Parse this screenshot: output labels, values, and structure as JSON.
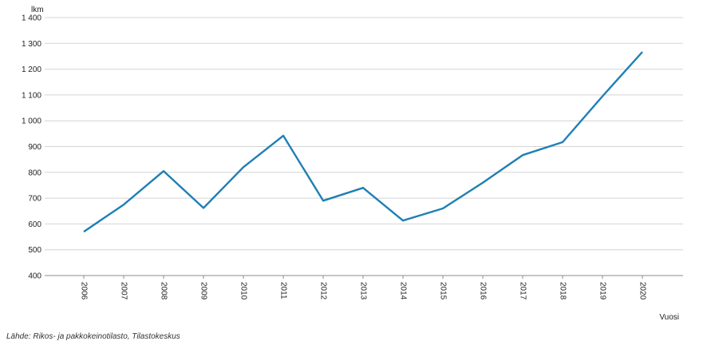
{
  "chart_data": {
    "type": "line",
    "title": "",
    "ylabel": "lkm",
    "xlabel": "Vuosi",
    "ylim": [
      400,
      1400
    ],
    "y_ticks": [
      400,
      500,
      600,
      700,
      800,
      900,
      1000,
      1100,
      1200,
      1300,
      1400
    ],
    "y_tick_labels": [
      "400",
      "500",
      "600",
      "700",
      "800",
      "900",
      "1 000",
      "1 100",
      "1 200",
      "1 300",
      "1 400"
    ],
    "grid": true,
    "line_color": "#1f7fb4",
    "categories": [
      "2006",
      "2007",
      "2008",
      "2009",
      "2010",
      "2011",
      "2012",
      "2013",
      "2014",
      "2015",
      "2016",
      "2017",
      "2018",
      "2019",
      "2020"
    ],
    "series": [
      {
        "values": [
          570,
          675,
          805,
          662,
          820,
          942,
          690,
          740,
          613,
          660,
          760,
          867,
          917,
          1095,
          1267
        ]
      }
    ]
  },
  "source": "Lähde: Rikos- ja pakkokeinotilasto, Tilastokeskus"
}
